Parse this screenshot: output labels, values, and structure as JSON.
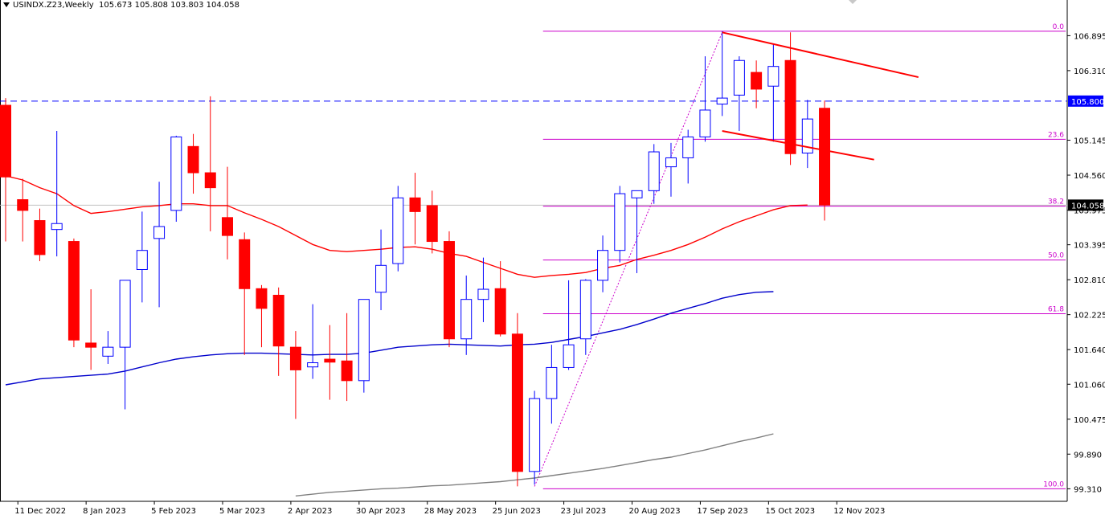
{
  "header": {
    "symbol_timeframe": "USINDX.Z23,Weekly",
    "ohlc": "105.673 105.808 103.803 104.058"
  },
  "colors": {
    "bull_outline": "#0000ff",
    "bear_fill": "#ff0000",
    "ma_fast": "#ff0000",
    "ma_mid": "#0000cc",
    "ma_slow": "#808080",
    "fib": "#cc00cc",
    "trendline": "#ff0000",
    "hline": "#0000ff",
    "price_label_bg": "#0000ff",
    "current_label_bg": "#000000"
  },
  "chart_data": {
    "type": "candlestick",
    "timeframe": "Weekly",
    "ylim": [
      99.1,
      107.25
    ],
    "y_ticks": [
      "106.895",
      "106.310",
      "105.145",
      "104.560",
      "103.975",
      "103.395",
      "102.810",
      "102.225",
      "101.640",
      "101.060",
      "100.475",
      "99.890",
      "99.310"
    ],
    "x_ticks": [
      {
        "i": 1,
        "label": "11 Dec 2022"
      },
      {
        "i": 5,
        "label": "8 Jan 2023"
      },
      {
        "i": 9,
        "label": "5 Feb 2023"
      },
      {
        "i": 13,
        "label": "5 Mar 2023"
      },
      {
        "i": 17,
        "label": "2 Apr 2023"
      },
      {
        "i": 21,
        "label": "30 Apr 2023"
      },
      {
        "i": 25,
        "label": "28 May 2023"
      },
      {
        "i": 29,
        "label": "25 Jun 2023"
      },
      {
        "i": 33,
        "label": "23 Jul 2023"
      },
      {
        "i": 37,
        "label": "20 Aug 2023"
      },
      {
        "i": 41,
        "label": "17 Sep 2023"
      },
      {
        "i": 45,
        "label": "15 Oct 2023"
      },
      {
        "i": 49,
        "label": "12 Nov 2023"
      }
    ],
    "candles": [
      {
        "o": 105.73,
        "h": 105.85,
        "l": 103.45,
        "c": 104.53
      },
      {
        "o": 104.15,
        "h": 104.5,
        "l": 103.45,
        "c": 103.97
      },
      {
        "o": 103.8,
        "h": 104.0,
        "l": 103.12,
        "c": 103.23
      },
      {
        "o": 103.65,
        "h": 105.3,
        "l": 103.2,
        "c": 103.75
      },
      {
        "o": 103.45,
        "h": 103.5,
        "l": 101.68,
        "c": 101.8
      },
      {
        "o": 101.75,
        "h": 102.65,
        "l": 101.3,
        "c": 101.68
      },
      {
        "o": 101.53,
        "h": 101.95,
        "l": 101.4,
        "c": 101.68
      },
      {
        "o": 101.68,
        "h": 102.8,
        "l": 100.64,
        "c": 102.8
      },
      {
        "o": 102.98,
        "h": 103.95,
        "l": 102.43,
        "c": 103.3
      },
      {
        "o": 103.5,
        "h": 104.45,
        "l": 102.35,
        "c": 103.7
      },
      {
        "o": 103.97,
        "h": 105.22,
        "l": 103.78,
        "c": 105.2
      },
      {
        "o": 105.04,
        "h": 105.25,
        "l": 104.25,
        "c": 104.6
      },
      {
        "o": 104.6,
        "h": 105.88,
        "l": 103.62,
        "c": 104.35
      },
      {
        "o": 103.85,
        "h": 104.7,
        "l": 103.15,
        "c": 103.55
      },
      {
        "o": 103.48,
        "h": 103.6,
        "l": 101.55,
        "c": 102.66
      },
      {
        "o": 102.66,
        "h": 102.72,
        "l": 101.68,
        "c": 102.33
      },
      {
        "o": 102.55,
        "h": 102.68,
        "l": 101.2,
        "c": 101.7
      },
      {
        "o": 101.68,
        "h": 101.95,
        "l": 100.48,
        "c": 101.3
      },
      {
        "o": 101.35,
        "h": 102.4,
        "l": 101.15,
        "c": 101.42
      },
      {
        "o": 101.48,
        "h": 102.05,
        "l": 100.8,
        "c": 101.43
      },
      {
        "o": 101.45,
        "h": 102.25,
        "l": 100.78,
        "c": 101.12
      },
      {
        "o": 101.12,
        "h": 102.48,
        "l": 100.92,
        "c": 102.48
      },
      {
        "o": 102.6,
        "h": 103.65,
        "l": 102.3,
        "c": 103.05
      },
      {
        "o": 103.08,
        "h": 104.38,
        "l": 102.95,
        "c": 104.18
      },
      {
        "o": 104.18,
        "h": 104.6,
        "l": 103.4,
        "c": 103.95
      },
      {
        "o": 104.05,
        "h": 104.3,
        "l": 103.25,
        "c": 103.45
      },
      {
        "o": 103.45,
        "h": 103.62,
        "l": 101.68,
        "c": 101.82
      },
      {
        "o": 101.82,
        "h": 102.88,
        "l": 101.55,
        "c": 102.48
      },
      {
        "o": 102.48,
        "h": 103.18,
        "l": 102.1,
        "c": 102.65
      },
      {
        "o": 102.66,
        "h": 103.12,
        "l": 101.86,
        "c": 101.9
      },
      {
        "o": 101.9,
        "h": 102.25,
        "l": 99.35,
        "c": 99.6
      },
      {
        "o": 99.6,
        "h": 100.95,
        "l": 99.38,
        "c": 100.82
      },
      {
        "o": 100.82,
        "h": 101.72,
        "l": 100.4,
        "c": 101.34
      },
      {
        "o": 101.34,
        "h": 102.8,
        "l": 101.3,
        "c": 101.72
      },
      {
        "o": 101.82,
        "h": 102.82,
        "l": 101.55,
        "c": 102.8
      },
      {
        "o": 102.8,
        "h": 103.55,
        "l": 102.6,
        "c": 103.3
      },
      {
        "o": 103.3,
        "h": 104.38,
        "l": 103.1,
        "c": 104.25
      },
      {
        "o": 104.18,
        "h": 104.3,
        "l": 102.92,
        "c": 104.3
      },
      {
        "o": 104.3,
        "h": 105.08,
        "l": 104.08,
        "c": 104.95
      },
      {
        "o": 104.7,
        "h": 105.1,
        "l": 104.2,
        "c": 104.85
      },
      {
        "o": 104.85,
        "h": 105.32,
        "l": 104.42,
        "c": 105.2
      },
      {
        "o": 105.2,
        "h": 106.55,
        "l": 105.12,
        "c": 105.65
      },
      {
        "o": 105.75,
        "h": 106.97,
        "l": 105.55,
        "c": 105.85
      },
      {
        "o": 105.9,
        "h": 106.55,
        "l": 105.3,
        "c": 106.48
      },
      {
        "o": 106.28,
        "h": 106.48,
        "l": 105.68,
        "c": 106.0
      },
      {
        "o": 106.05,
        "h": 106.75,
        "l": 105.12,
        "c": 106.38
      },
      {
        "o": 106.48,
        "h": 106.95,
        "l": 104.73,
        "c": 104.92
      },
      {
        "o": 104.93,
        "h": 105.82,
        "l": 104.68,
        "c": 105.5
      },
      {
        "o": 105.68,
        "h": 105.81,
        "l": 103.8,
        "c": 104.06
      }
    ],
    "moving_averages": [
      {
        "color_key": "ma_fast",
        "values": [
          104.55,
          104.48,
          104.35,
          104.25,
          104.05,
          103.92,
          103.95,
          103.99,
          104.03,
          104.05,
          104.08,
          104.08,
          104.05,
          104.05,
          103.93,
          103.82,
          103.7,
          103.55,
          103.4,
          103.3,
          103.28,
          103.3,
          103.32,
          103.35,
          103.36,
          103.32,
          103.25,
          103.2,
          103.1,
          103.0,
          102.9,
          102.85,
          102.88,
          102.9,
          102.93,
          103.0,
          103.05,
          103.15,
          103.22,
          103.3,
          103.4,
          103.52,
          103.66,
          103.78,
          103.88,
          103.98,
          104.05,
          104.06
        ],
        "start": 0
      },
      {
        "color_key": "ma_mid",
        "values": [
          101.05,
          101.1,
          101.15,
          101.17,
          101.19,
          101.21,
          101.23,
          101.28,
          101.35,
          101.42,
          101.48,
          101.52,
          101.55,
          101.57,
          101.58,
          101.58,
          101.57,
          101.56,
          101.55,
          101.56,
          101.56,
          101.58,
          101.63,
          101.68,
          101.7,
          101.72,
          101.73,
          101.72,
          101.71,
          101.7,
          101.72,
          101.73,
          101.76,
          101.81,
          101.86,
          101.92,
          101.98,
          102.06,
          102.15,
          102.25,
          102.33,
          102.41,
          102.5,
          102.56,
          102.6,
          102.61
        ],
        "start": 0
      },
      {
        "color_key": "ma_slow",
        "values": [
          99.19,
          99.22,
          99.25,
          99.27,
          99.29,
          99.31,
          99.32,
          99.34,
          99.36,
          99.37,
          99.39,
          99.41,
          99.43,
          99.46,
          99.49,
          99.53,
          99.57,
          99.61,
          99.65,
          99.7,
          99.75,
          99.8,
          99.84,
          99.9,
          99.96,
          100.03,
          100.1,
          100.16,
          100.23
        ],
        "start": 17
      }
    ],
    "horizontal_line": {
      "value": 105.8,
      "label": "105.800"
    },
    "current_price": {
      "value": 104.058,
      "label": "104.058"
    },
    "fibonacci": {
      "start_value": 99.31,
      "end_value": 106.97,
      "levels": [
        {
          "label": "0.0",
          "value": 106.97
        },
        {
          "label": "23.6",
          "value": 105.16
        },
        {
          "label": "38.2",
          "value": 104.04
        },
        {
          "label": "50.0",
          "value": 103.14
        },
        {
          "label": "61.8",
          "value": 102.24
        },
        {
          "label": "100.0",
          "value": 99.31
        }
      ],
      "from_index": 31.5,
      "to_index": 51.0
    },
    "trendlines": [
      {
        "from": {
          "i": 42,
          "v": 106.95
        },
        "to": {
          "i": 53.5,
          "v": 106.2
        }
      },
      {
        "from": {
          "i": 42,
          "v": 105.3
        },
        "to": {
          "i": 50.9,
          "v": 104.82
        }
      }
    ],
    "fib_diagonal": {
      "from": {
        "i": 31,
        "v": 99.35
      },
      "to": {
        "i": 42,
        "v": 106.95
      }
    }
  }
}
